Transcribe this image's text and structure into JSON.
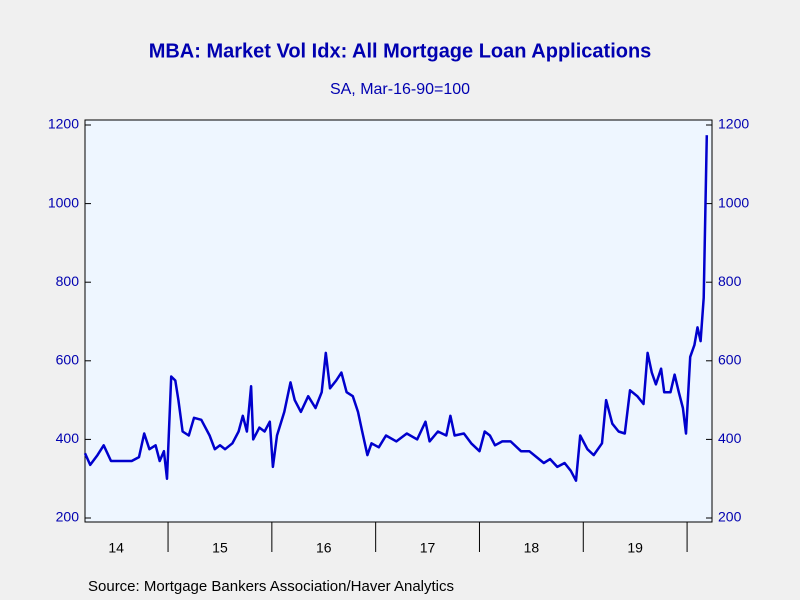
{
  "chart_data": {
    "type": "line",
    "title": "MBA: Market Vol Idx: All Mortgage Loan Applications",
    "subtitle": "SA, Mar-16-90=100",
    "source": "Source:  Mortgage Bankers Association/Haver Analytics",
    "color": "#0000cd",
    "x": [
      2014.2,
      2014.25,
      2014.32,
      2014.38,
      2014.45,
      2014.55,
      2014.65,
      2014.72,
      2014.77,
      2014.82,
      2014.88,
      2014.92,
      2014.96,
      2014.99,
      2015.03,
      2015.07,
      2015.1,
      2015.14,
      2015.2,
      2015.25,
      2015.32,
      2015.4,
      2015.45,
      2015.5,
      2015.55,
      2015.62,
      2015.68,
      2015.72,
      2015.76,
      2015.8,
      2015.82,
      2015.88,
      2015.93,
      2015.98,
      2016.01,
      2016.05,
      2016.12,
      2016.18,
      2016.22,
      2016.28,
      2016.35,
      2016.42,
      2016.48,
      2016.52,
      2016.56,
      2016.62,
      2016.67,
      2016.72,
      2016.78,
      2016.83,
      2016.87,
      2016.92,
      2016.96,
      2017.03,
      2017.1,
      2017.2,
      2017.3,
      2017.4,
      2017.48,
      2017.52,
      2017.6,
      2017.68,
      2017.72,
      2017.76,
      2017.85,
      2017.92,
      2018.0,
      2018.05,
      2018.1,
      2018.15,
      2018.22,
      2018.3,
      2018.4,
      2018.48,
      2018.55,
      2018.62,
      2018.68,
      2018.75,
      2018.82,
      2018.88,
      2018.93,
      2018.97,
      2019.04,
      2019.1,
      2019.18,
      2019.22,
      2019.28,
      2019.34,
      2019.4,
      2019.45,
      2019.52,
      2019.58,
      2019.62,
      2019.66,
      2019.7,
      2019.75,
      2019.78,
      2019.84,
      2019.88,
      2019.92,
      2019.96,
      2019.99,
      2020.03,
      2020.07,
      2020.1,
      2020.13,
      2020.16,
      2020.19
    ],
    "values": [
      365,
      335,
      360,
      385,
      345,
      345,
      345,
      355,
      415,
      375,
      385,
      345,
      370,
      300,
      560,
      550,
      500,
      420,
      410,
      455,
      450,
      410,
      375,
      385,
      375,
      390,
      420,
      460,
      420,
      535,
      400,
      430,
      420,
      445,
      330,
      410,
      470,
      545,
      500,
      470,
      510,
      480,
      520,
      620,
      530,
      550,
      570,
      520,
      510,
      470,
      420,
      360,
      390,
      380,
      410,
      395,
      415,
      400,
      445,
      395,
      420,
      410,
      460,
      410,
      415,
      390,
      370,
      420,
      410,
      385,
      395,
      395,
      370,
      370,
      355,
      340,
      350,
      330,
      340,
      320,
      295,
      410,
      375,
      360,
      390,
      500,
      440,
      420,
      415,
      525,
      510,
      490,
      620,
      570,
      540,
      580,
      520,
      520,
      565,
      520,
      480,
      415,
      610,
      640,
      685,
      650,
      760,
      1174
    ],
    "xlim": [
      2014.2,
      2020.24
    ],
    "xticks": [
      {
        "value": 2014.5,
        "label": "14"
      },
      {
        "value": 2015.5,
        "label": "15"
      },
      {
        "value": 2016.5,
        "label": "16"
      },
      {
        "value": 2017.5,
        "label": "17"
      },
      {
        "value": 2018.5,
        "label": "18"
      },
      {
        "value": 2019.5,
        "label": "19"
      }
    ],
    "ylim": [
      200,
      1200
    ],
    "yticks": [
      200,
      400,
      600,
      800,
      1000,
      1200
    ]
  }
}
